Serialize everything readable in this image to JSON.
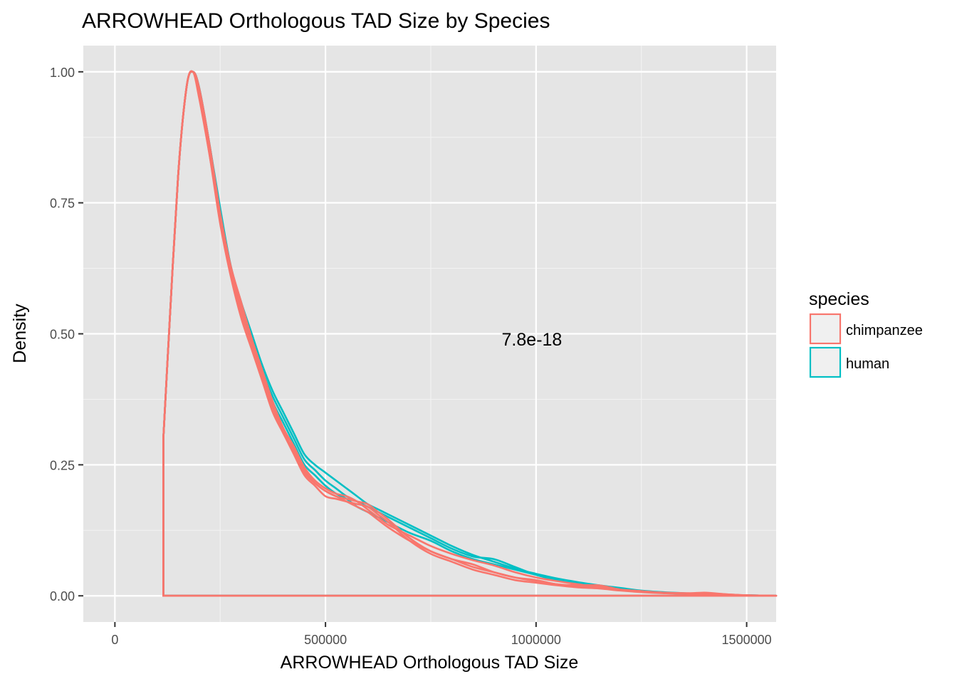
{
  "chart_data": {
    "type": "line",
    "title": "ARROWHEAD Orthologous TAD Size by Species",
    "xlabel": "ARROWHEAD Orthologous TAD Size",
    "ylabel": "Density",
    "xlim": [
      -75000,
      1570000
    ],
    "ylim": [
      -0.05,
      1.05
    ],
    "x_ticks": [
      0,
      500000,
      1000000,
      1500000
    ],
    "x_tick_labels": [
      "0",
      "500000",
      "1000000",
      "1500000"
    ],
    "y_ticks": [
      0.0,
      0.25,
      0.5,
      0.75,
      1.0
    ],
    "y_tick_labels": [
      "0.00",
      "0.25",
      "0.50",
      "0.75",
      "1.00"
    ],
    "grid": true,
    "annotation": {
      "text": "7.8e-18",
      "x": 990000,
      "y": 0.49
    },
    "legend": {
      "title": "species",
      "position": "right",
      "entries": [
        {
          "label": "chimpanzee",
          "color": "#F8766D"
        },
        {
          "label": "human",
          "color": "#00BFC4"
        }
      ]
    },
    "x": [
      115000,
      125000,
      150000,
      170000,
      185000,
      200000,
      225000,
      250000,
      275000,
      300000,
      325000,
      350000,
      375000,
      400000,
      425000,
      450000,
      475000,
      500000,
      525000,
      550000,
      575000,
      600000,
      625000,
      650000,
      700000,
      750000,
      800000,
      850000,
      900000,
      950000,
      1000000,
      1050000,
      1100000,
      1150000,
      1200000,
      1250000,
      1300000,
      1350000,
      1400000,
      1450000,
      1500000,
      1570000
    ],
    "series": [
      {
        "species": "human",
        "color": "#00BFC4",
        "values": [
          0.3,
          0.45,
          0.8,
          0.97,
          1.0,
          0.97,
          0.86,
          0.74,
          0.63,
          0.56,
          0.5,
          0.44,
          0.39,
          0.35,
          0.31,
          0.27,
          0.25,
          0.235,
          0.22,
          0.205,
          0.19,
          0.175,
          0.165,
          0.155,
          0.135,
          0.115,
          0.095,
          0.078,
          0.065,
          0.052,
          0.042,
          0.033,
          0.026,
          0.02,
          0.015,
          0.01,
          0.007,
          0.005,
          0.003,
          0.002,
          0.001,
          0.0
        ]
      },
      {
        "species": "human",
        "color": "#00BFC4",
        "values": [
          0.3,
          0.45,
          0.8,
          0.97,
          1.0,
          0.96,
          0.85,
          0.72,
          0.62,
          0.55,
          0.49,
          0.43,
          0.38,
          0.34,
          0.3,
          0.26,
          0.24,
          0.22,
          0.205,
          0.19,
          0.18,
          0.17,
          0.16,
          0.15,
          0.13,
          0.11,
          0.09,
          0.075,
          0.07,
          0.055,
          0.04,
          0.03,
          0.024,
          0.018,
          0.013,
          0.009,
          0.006,
          0.004,
          0.003,
          0.002,
          0.001,
          0.0
        ]
      },
      {
        "species": "human",
        "color": "#00BFC4",
        "values": [
          0.3,
          0.45,
          0.8,
          0.97,
          1.0,
          0.97,
          0.86,
          0.73,
          0.63,
          0.55,
          0.49,
          0.43,
          0.37,
          0.33,
          0.29,
          0.25,
          0.23,
          0.21,
          0.195,
          0.185,
          0.17,
          0.16,
          0.15,
          0.14,
          0.12,
          0.105,
          0.085,
          0.07,
          0.06,
          0.05,
          0.04,
          0.03,
          0.022,
          0.016,
          0.012,
          0.008,
          0.006,
          0.004,
          0.003,
          0.002,
          0.001,
          0.0
        ]
      },
      {
        "species": "chimpanzee",
        "color": "#F8766D",
        "values": [
          0.3,
          0.45,
          0.8,
          0.97,
          1.0,
          0.95,
          0.84,
          0.72,
          0.62,
          0.54,
          0.48,
          0.42,
          0.36,
          0.31,
          0.28,
          0.24,
          0.215,
          0.2,
          0.19,
          0.185,
          0.18,
          0.175,
          0.16,
          0.145,
          0.11,
          0.085,
          0.07,
          0.06,
          0.045,
          0.035,
          0.03,
          0.022,
          0.02,
          0.02,
          0.012,
          0.008,
          0.006,
          0.005,
          0.004,
          0.002,
          0.001,
          0.0
        ]
      },
      {
        "species": "chimpanzee",
        "color": "#F8766D",
        "values": [
          0.3,
          0.45,
          0.8,
          0.97,
          1.0,
          0.96,
          0.84,
          0.71,
          0.61,
          0.53,
          0.47,
          0.41,
          0.35,
          0.31,
          0.27,
          0.23,
          0.21,
          0.19,
          0.185,
          0.18,
          0.175,
          0.17,
          0.155,
          0.14,
          0.105,
          0.08,
          0.065,
          0.05,
          0.04,
          0.03,
          0.025,
          0.02,
          0.016,
          0.014,
          0.01,
          0.007,
          0.005,
          0.004,
          0.006,
          0.003,
          0.001,
          0.0
        ]
      },
      {
        "species": "chimpanzee",
        "color": "#F8766D",
        "values": [
          0.3,
          0.45,
          0.8,
          0.97,
          1.0,
          0.96,
          0.85,
          0.72,
          0.62,
          0.55,
          0.49,
          0.43,
          0.37,
          0.32,
          0.285,
          0.245,
          0.22,
          0.205,
          0.195,
          0.19,
          0.18,
          0.165,
          0.15,
          0.135,
          0.115,
          0.095,
          0.08,
          0.068,
          0.058,
          0.045,
          0.035,
          0.028,
          0.022,
          0.017,
          0.012,
          0.009,
          0.006,
          0.004,
          0.003,
          0.002,
          0.001,
          0.0
        ]
      },
      {
        "species": "chimpanzee",
        "color": "#F8766D",
        "values": [
          0.3,
          0.45,
          0.8,
          0.97,
          1.0,
          0.97,
          0.86,
          0.73,
          0.63,
          0.56,
          0.49,
          0.42,
          0.36,
          0.315,
          0.275,
          0.235,
          0.215,
          0.2,
          0.19,
          0.18,
          0.17,
          0.16,
          0.145,
          0.13,
          0.105,
          0.085,
          0.07,
          0.055,
          0.045,
          0.035,
          0.028,
          0.022,
          0.018,
          0.015,
          0.011,
          0.008,
          0.006,
          0.005,
          0.005,
          0.003,
          0.001,
          0.0
        ]
      }
    ]
  }
}
